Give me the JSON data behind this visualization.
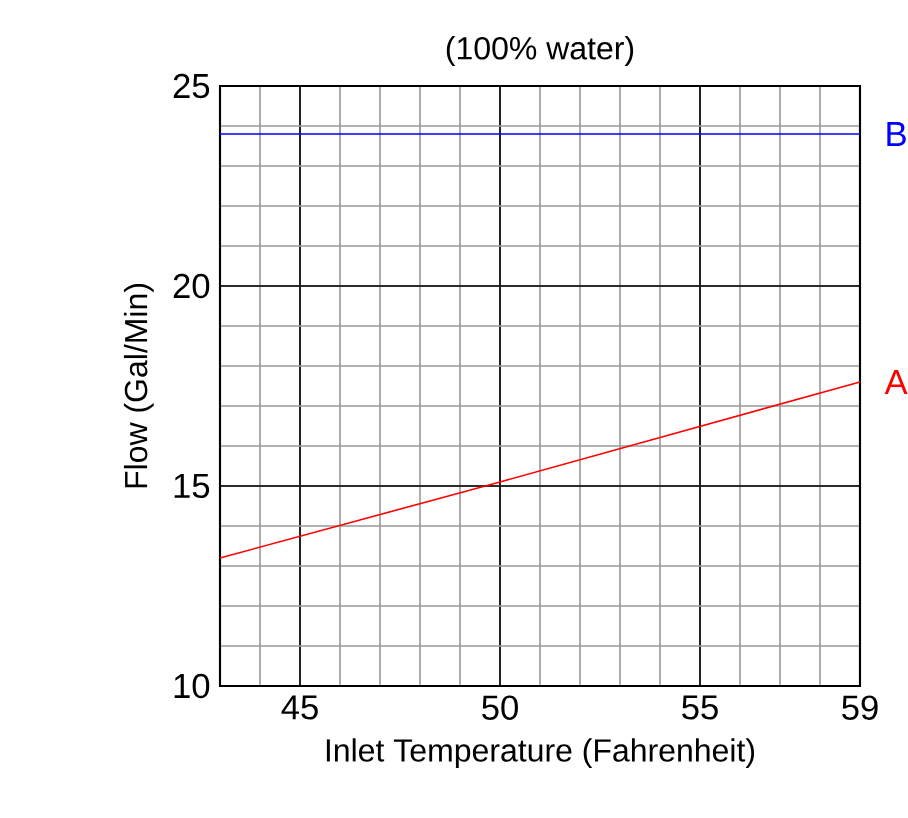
{
  "chart_data": {
    "type": "line",
    "title": "(100% water)",
    "xlabel": "Inlet Temperature (Fahrenheit)",
    "ylabel": "Flow (Gal/Min)",
    "xlim": [
      43,
      59
    ],
    "xticks": [
      45,
      50,
      55,
      59
    ],
    "ylim": [
      10,
      25
    ],
    "yticks": [
      10,
      15,
      20,
      25
    ],
    "grid": true,
    "legend": false,
    "marker": "none",
    "line_style": "solid",
    "series": [
      {
        "name": "B",
        "color": "#0000ff",
        "x": [
          43,
          59
        ],
        "values": [
          23.8,
          23.8
        ]
      },
      {
        "name": "A",
        "color": "#ff0000",
        "x": [
          43,
          50,
          59
        ],
        "values": [
          13.2,
          15.1,
          17.6
        ]
      }
    ]
  }
}
